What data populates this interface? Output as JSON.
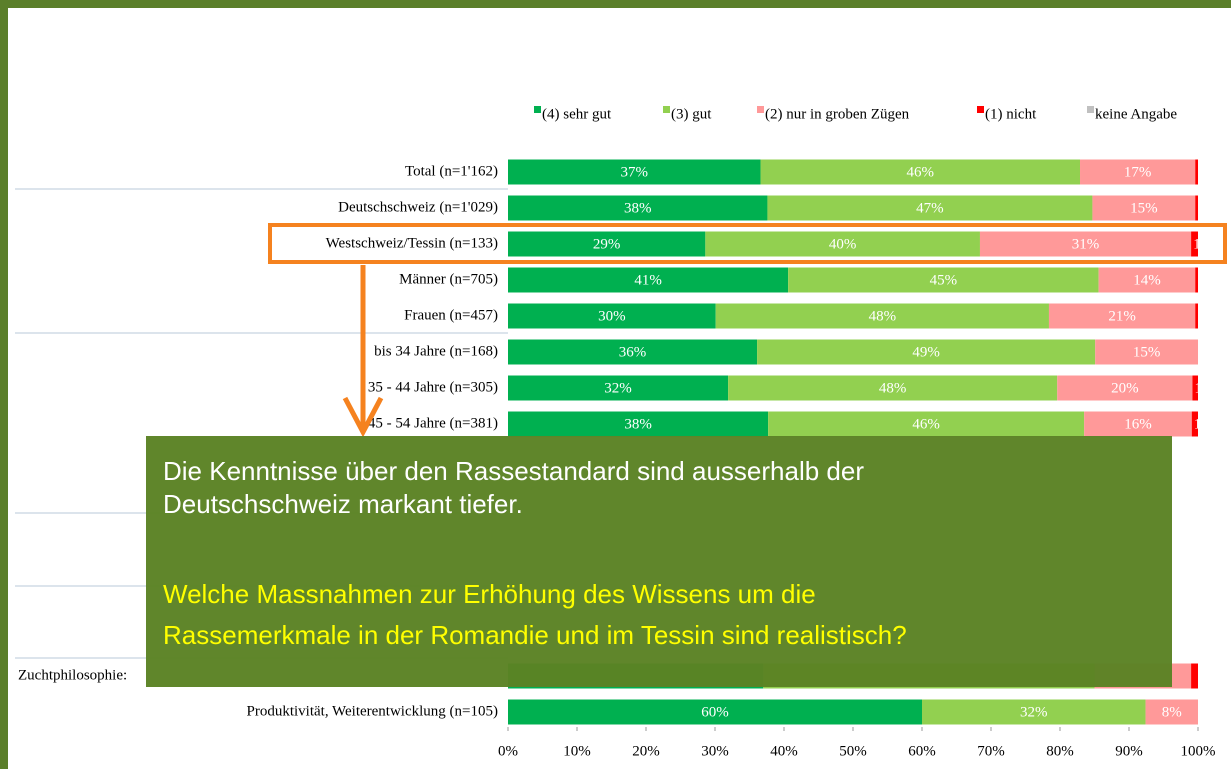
{
  "chart_data": {
    "type": "stacked_barh",
    "categories": [
      "Total (n=1'162)",
      "Deutschschweiz (n=1'029)",
      "Westschweiz/Tessin (n=133)",
      "Männer (n=705)",
      "Frauen (n=457)",
      "bis 34 Jahre (n=168)",
      "35 - 44 Jahre (n=305)",
      "45 - 54 Jahre (n=381)",
      null,
      null,
      null,
      null,
      null,
      null,
      "Zuchtphilosophie:",
      "Produktivität, Weiterentwicklung (n=105)"
    ],
    "series": [
      {
        "name": "(4) sehr gut",
        "color": "#00b050",
        "values": [
          36.6,
          37.6,
          28.6,
          40.6,
          30.1,
          36.1,
          31.9,
          37.7,
          null,
          null,
          null,
          null,
          null,
          null,
          37,
          60.0
        ],
        "value_labels": [
          "37%",
          "38%",
          "29%",
          "41%",
          "30%",
          "36%",
          "32%",
          "38%",
          null,
          null,
          null,
          null,
          null,
          null,
          null,
          "60%"
        ]
      },
      {
        "name": "(3) gut",
        "color": "#92d050",
        "values": [
          46.3,
          47.1,
          39.8,
          45.0,
          48.3,
          49.0,
          47.7,
          45.8,
          null,
          null,
          null,
          null,
          null,
          null,
          48,
          32.4
        ],
        "value_labels": [
          "46%",
          "47%",
          "40%",
          "45%",
          "48%",
          "49%",
          "48%",
          "46%",
          null,
          null,
          null,
          null,
          null,
          null,
          null,
          "32%"
        ]
      },
      {
        "name": "(2) nur in groben Zügen",
        "color": "#ff9999",
        "values": [
          16.7,
          14.9,
          30.6,
          14.0,
          21.2,
          14.9,
          19.6,
          15.6,
          null,
          null,
          null,
          null,
          null,
          null,
          14,
          7.6
        ],
        "value_labels": [
          "17%",
          "15%",
          "31%",
          "14%",
          "21%",
          "15%",
          "20%",
          "16%",
          null,
          null,
          null,
          null,
          null,
          null,
          null,
          "8%"
        ]
      },
      {
        "name": "(1) nicht",
        "color": "#ff0000",
        "values": [
          0.4,
          0.4,
          1.0,
          0.4,
          0.4,
          0,
          0.8,
          0.9,
          null,
          null,
          null,
          null,
          null,
          null,
          1,
          0
        ],
        "value_labels": [
          null,
          null,
          "1%",
          null,
          null,
          null,
          "1%",
          "1%",
          null,
          null,
          null,
          null,
          null,
          null,
          null,
          null
        ]
      },
      {
        "name": "keine Angabe",
        "color": "#c0c0c0",
        "values": [
          0,
          0,
          0,
          0,
          0,
          0,
          0,
          0,
          null,
          null,
          null,
          null,
          null,
          null,
          0,
          0
        ],
        "value_labels": [
          null,
          null,
          null,
          null,
          null,
          null,
          null,
          null,
          null,
          null,
          null,
          null,
          null,
          null,
          null,
          null
        ]
      }
    ],
    "xlim": [
      0,
      100
    ],
    "xticks": [
      {
        "value": 0,
        "label": "0%"
      },
      {
        "value": 10,
        "label": "10%"
      },
      {
        "value": 20,
        "label": "20%"
      },
      {
        "value": 30,
        "label": "30%"
      },
      {
        "value": 40,
        "label": "40%"
      },
      {
        "value": 50,
        "label": "50%"
      },
      {
        "value": 60,
        "label": "60%"
      },
      {
        "value": 70,
        "label": "70%"
      },
      {
        "value": 80,
        "label": "80%"
      },
      {
        "value": 90,
        "label": "90%"
      },
      {
        "value": 100,
        "label": "100%"
      }
    ],
    "highlight_row": 2
  },
  "callout": {
    "text": [
      "Die Kenntnisse über den Rassestandard sind ausserhalb der",
      "Deutschschweiz markant tiefer."
    ],
    "question": [
      "Welche Massnahmen zur Erhöhung des Wissens um die",
      "Rassemerkmale in der Romandie und im Tessin sind realistisch?"
    ]
  }
}
